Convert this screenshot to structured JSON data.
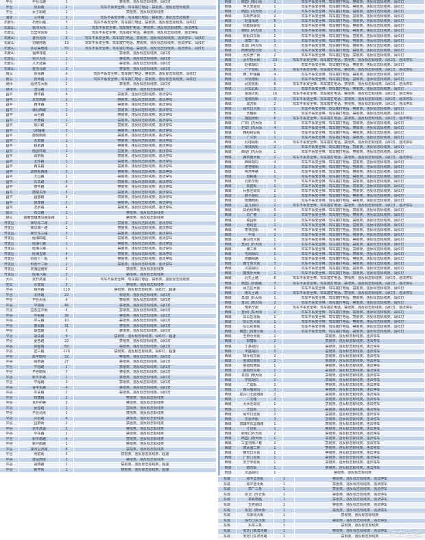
{
  "row_colors": {
    "light": "#edf1f8",
    "blue": "#c4d3e8"
  },
  "left_table": {
    "rows": [
      [
        "丰台",
        "丰台北路",
        "1",
        "禁限类、违反标志标线类、闯红灯"
      ],
      [
        "丰台",
        "京周路",
        "2",
        "驾车不系安全带、驾车拨打电话、禁限类、违反标志标线类"
      ],
      [
        "丰台",
        "太子峪路",
        "1",
        "禁限类、违反标志标线类"
      ],
      [
        "海淀",
        "三环路",
        "2",
        "驾车不系安全带、驾车拨打电话、禁限类、违反标志标线类"
      ],
      [
        "石景山",
        "石景山路",
        "3",
        "驾车不系安全带、驾车拨打电话、禁限类、违反标志标线类、闯红灯"
      ],
      [
        "石景山",
        "银河大街",
        "1",
        "驾车不系安全带、驾车拨打电话、禁限类、违反标志标线类、违法停车"
      ],
      [
        "石景山",
        "五里坨东街",
        "1",
        "驾车不系安全带、驾车拨打电话、禁限类、违反标志标线类、违法停车"
      ],
      [
        "石景山",
        "晋元北街",
        "8",
        "驾车不系安全带、驾车拨打电话、禁限类、违反标志标线类、违法停车、闯红灯"
      ],
      [
        "石景山",
        "刘娘府路",
        "13",
        "驾车不系安全带、驾车拨打电话、禁限类、违反标志标线类、违法停车、闯红灯"
      ],
      [
        "石景山",
        "永引渠南路",
        "55",
        "驾车不系安全带、驾车拨打电话、禁限类、违反标志标线类、违法停车、闯红灯"
      ],
      [
        "石景山",
        "福田寺路",
        "1",
        "禁限类、违反标志标线类、闯红灯"
      ],
      [
        "石景山",
        "实兴大街",
        "1",
        "禁限类、违反标志标线类、闯红灯"
      ],
      [
        "石景山",
        "八大处路",
        "2",
        "禁限类、违反标志标线类、闯红灯"
      ],
      [
        "石景山",
        "金顶北路",
        "3",
        "禁限类、违反标志标线类、闯红灯"
      ],
      [
        "房山",
        "京深路",
        "4",
        "驾车不系安全带、驾车拨打电话、禁限类、违反标志标线类、闯红灯"
      ],
      [
        "房山",
        "京周路",
        "2",
        "驾车不系安全带、驾车拨打电话、禁限类、违反标志标线类、闯红灯"
      ],
      [
        "通州",
        "运河东大街",
        "2",
        "禁限类、违反标志标线类、闯红灯"
      ],
      [
        "通州",
        "滨马路",
        "1",
        "禁限类、违反标志标线类"
      ],
      [
        "昌平",
        "南环路",
        "4",
        "禁限类、违反标志标线类、违法停车"
      ],
      [
        "昌平",
        "永安西路",
        "2",
        "禁限类、违反标志标线类、违法停车"
      ],
      [
        "昌平",
        "西环路",
        "3",
        "禁限类、违反标志标线类、违法停车"
      ],
      [
        "昌平",
        "城北西路",
        "1",
        "禁限类、违反标志标线类、违法停车"
      ],
      [
        "昌平",
        "百合路",
        "2",
        "禁限类、违反标志标线类、违法停车"
      ],
      [
        "昌平",
        "水南路",
        "1",
        "禁限类、违反标志标线类、违法停车"
      ],
      [
        "昌平",
        "振兴路",
        "2",
        "禁限类、违反标志标线类、违法停车"
      ],
      [
        "昌平",
        "G6辅路",
        "3",
        "禁限类、违反标志标线类、违法停车"
      ],
      [
        "昌平",
        "鼓楼南街",
        "2",
        "禁限类、违反标志标线类、违法停车"
      ],
      [
        "昌平",
        "永安路",
        "1",
        "禁限类、违反标志标线类、违法停车"
      ],
      [
        "昌平",
        "超前路",
        "1",
        "禁限类、违反标志标线类、违法停车"
      ],
      [
        "昌平",
        "南邵环路",
        "1",
        "禁限类、违反标志标线类、违法停车"
      ],
      [
        "昌平",
        "政府街",
        "1",
        "禁限类、违反标志标线类、违法停车"
      ],
      [
        "昌平",
        "北环路",
        "1",
        "禁限类、违反标志标线类、违法停车"
      ],
      [
        "昌平",
        "西关路",
        "1",
        "禁限类、违反标志标线类、违法停车"
      ],
      [
        "昌平",
        "政府街西路",
        "3",
        "禁限类、违反标志标线类、违法停车"
      ],
      [
        "昌平",
        "亢山路",
        "1",
        "禁限类、违反标志标线类、违法停车"
      ],
      [
        "昌平",
        "东关路",
        "4",
        "禁限类、违反标志标线类、违法停车"
      ],
      [
        "昌平",
        "燕平路",
        "4",
        "禁限类、违反标志标线类、违法停车"
      ],
      [
        "昌平",
        "鼓楼东街",
        "3",
        "禁限类、违反标志标线类、违法停车"
      ],
      [
        "昌平",
        "昌盛路",
        "3",
        "禁限类、违反标志标线类、违法停车"
      ],
      [
        "昌平",
        "富康路",
        "2",
        "禁限类、违反标志标线类、违法停车"
      ],
      [
        "昌平",
        "龙水路",
        "4",
        "禁限类、违反标志标线类、违法停车"
      ],
      [
        "顺义",
        "石马路",
        "1",
        "禁限类、违反标志标线类"
      ],
      [
        "顺义",
        "高丽营镇西马圈车路",
        "1",
        "禁限类、违反标志标线类"
      ],
      [
        "开发区",
        "荣华东二路",
        "2",
        "禁限类、违反标志标线类、违法停车"
      ],
      [
        "开发区",
        "荣华西一路",
        "1",
        "禁限类、违反标志标线类、违法停车"
      ],
      [
        "开发区",
        "荣华东三路",
        "3",
        "禁限类、违反标志标线类、违法停车"
      ],
      [
        "开发区",
        "经海四路",
        "2",
        "禁限类、违反标志标线类、违法停车"
      ],
      [
        "开发区",
        "经海七路",
        "1",
        "禁限类、违反标志标线类、违法停车"
      ],
      [
        "开发区",
        "经海三路",
        "1",
        "禁限类、违反标志标线类、违法停车"
      ],
      [
        "开发区",
        "经海五路",
        "4",
        "禁限类、违反标志标线类、违法停车"
      ],
      [
        "开发区",
        "科创十一街",
        "4",
        "禁限类、违反标志标线类、违法停车"
      ],
      [
        "开发区",
        "科创十二街",
        "1",
        "禁限类、违反标志标线类、违法停车"
      ],
      [
        "开发区",
        "定海园南街",
        "2",
        "禁限类、违反标志标线类"
      ],
      [
        "开发区",
        "经海八路",
        "3",
        "禁限类、违反标志标线类"
      ],
      [
        "大兴",
        "京开高速",
        "2",
        "驾车不系安全带、驾车拨打电话、禁限类、违反标志标线类"
      ],
      [
        "密云",
        "水安街",
        "3",
        "禁限类、违反标志标线类"
      ],
      [
        "平谷",
        "顺平路",
        "110",
        "禁限类、违反标志标线类、闯红灯、超速"
      ],
      [
        "平谷",
        "北环路",
        "22",
        "禁限类、违反标志标线类、闯红灯"
      ],
      [
        "平谷",
        "平谷大街",
        "4",
        "禁限类、违反标志标线类、闯红灯"
      ],
      [
        "平谷",
        "平瑞街",
        "46",
        "禁限类、违反标志标线类、闯红灯"
      ],
      [
        "平谷",
        "岳各庄中街",
        "4",
        "禁限类、违反标志标线类、闯红灯"
      ],
      [
        "平谷",
        "平蓟路",
        "36",
        "禁限类、违反标志标线类、闯红灯"
      ],
      [
        "平谷",
        "平三路",
        "10",
        "禁限类、违反标志标线类、闯红灯"
      ],
      [
        "平谷",
        "泰润路",
        "31",
        "禁限类、违反标志标线类、闯红灯"
      ],
      [
        "平谷",
        "胡营路",
        "3",
        "禁限类、违反标志标线类、闯红灯"
      ],
      [
        "平谷",
        "胡关路",
        "9",
        "禁限类、违反标志标线类、闯红灯、超速"
      ],
      [
        "平谷",
        "夏各路",
        "22",
        "禁限类、违反标志标线类、闯红灯"
      ],
      [
        "平谷",
        "四金路",
        "69",
        "禁限类、违反标志标线类、闯红灯"
      ],
      [
        "平谷",
        "密三路",
        "110",
        "禁限类、违反标志标线类、闯红灯、超速"
      ],
      [
        "平谷",
        "顺平南线",
        "32",
        "禁限类、违反标志标线类、闯红灯"
      ],
      [
        "平谷",
        "峪杏路",
        "27",
        "禁限类、违反标志标线类、闯红灯"
      ],
      [
        "平谷",
        "平翔路",
        "2",
        "禁限类、违反标志标线类、闯红灯"
      ],
      [
        "平谷",
        "平谷南街",
        "7",
        "禁限类、违反标志标线类、闯红灯"
      ],
      [
        "平谷",
        "新平东路",
        "2",
        "禁限类、违反标志标线类、闯红灯"
      ],
      [
        "平谷",
        "平程路",
        "3",
        "禁限类、违反标志标线类、闯红灯"
      ],
      [
        "平谷",
        "谷丰东路",
        "4",
        "禁限类、违反标志标线类、闯红灯"
      ],
      [
        "平谷",
        "平关路",
        "2",
        "禁限类、违反标志标线类、闯红灯"
      ],
      [
        "平谷",
        "林荫路",
        "2",
        "禁限类、违反标志标线类"
      ],
      [
        "平谷",
        "瓦井中路",
        "2",
        "禁限类、违反标志标线类"
      ],
      [
        "平谷",
        "民强路",
        "1",
        "禁限类、违反标志标线类"
      ],
      [
        "平谷",
        "平谷北街",
        "1",
        "禁限类、违反标志标线类"
      ],
      [
        "平谷",
        "兴谷路",
        "4",
        "禁限类、违反标志标线类"
      ],
      [
        "平谷",
        "园田街",
        "2",
        "禁限类、违反标志标线类"
      ],
      [
        "平谷",
        "京平高速",
        "2",
        "禁限类、违反标志标线类"
      ],
      [
        "平谷",
        "平东路",
        "2",
        "禁限类、违反标志标线类"
      ],
      [
        "平谷",
        "新平南路",
        "4",
        "禁限类、违反标志标线类"
      ],
      [
        "平谷",
        "新坪南路",
        "1",
        "禁限类、违反标志标线类"
      ],
      [
        "平谷",
        "洳河沿河路",
        "8",
        "禁限类、违反标志标线类"
      ],
      [
        "平谷",
        "明前街",
        "5",
        "禁限类、违反标志标线类、超速"
      ],
      [
        "平谷",
        "建设西街",
        "3",
        "禁限类、违反标志标线类"
      ],
      [
        "平谷",
        "胡博路",
        "2",
        "禁限类、违反标志标线类、超速"
      ],
      [
        "平谷",
        "新开街",
        "1",
        "禁限类、违反标志标线类、超速"
      ]
    ]
  },
  "right_table_west": {
    "rows": [
      [
        "西城",
        "西直门南小街",
        "2",
        "驾车不系安全带、驾车拨打电话、禁限类、违反标志标线类、闯红灯"
      ],
      [
        "西城",
        "中大安胡同",
        "1",
        "驾车不系安全带、驾车拨打电话、禁限类、违反标志标线类、闯红灯"
      ],
      [
        "西城",
        "西直门内大街",
        "2",
        "驾车不系安全带、驾车拨打电话、禁限类、违反标志标线类、闯红灯"
      ],
      [
        "西城",
        "东新开胡同",
        "2",
        "驾车不系安全带、驾车拨打电话、禁限类、违反标志标线类、闯红灯"
      ],
      [
        "西城",
        "赵登禹路",
        "5",
        "驾车不系安全带、驾车拨打电话、禁限类、违反标志标线类、闯红灯"
      ],
      [
        "西城",
        "东教场胡同",
        "1",
        "驾车不系安全带、驾车拨打电话、禁限类、违反标志标线类、闯红灯"
      ],
      [
        "西城",
        "德胜门内大街",
        "5",
        "驾车不系安全带、驾车拨打电话、禁限类、违反标志标线类、闯红灯"
      ],
      [
        "西城",
        "新街口东街",
        "1",
        "驾车不系安全带、驾车拨打电话、禁限类、违反标志标线类、闯红灯"
      ],
      [
        "西城",
        "南草厂街",
        "1",
        "驾车不系安全带、驾车拨打电话、禁限类、违反标志标线类、闯红灯"
      ],
      [
        "西城",
        "阜成门内大街",
        "3",
        "驾车不系安全带、驾车拨打电话、禁限类、违反标志标线类、闯红灯"
      ],
      [
        "西城",
        "西黄城根北街",
        "1",
        "驾车不系安全带、驾车拨打电话、禁限类、违反标志标线类、闯红灯"
      ],
      [
        "西城",
        "大红罗厂街",
        "2",
        "驾车不系安全带、驾车拨打电话、禁限类、违反标志标线类、闯红灯"
      ],
      [
        "西城",
        "太平桥大街",
        "23",
        "驾车不系安全带、驾车拨打电话、禁限类、违反标志标线类、闯红灯、违法停车"
      ],
      [
        "西城",
        "赵孝胡同",
        "1",
        "驾车不系安全带、驾车拨打电话、禁限类、违反标志标线类、闯红灯"
      ],
      [
        "西城",
        "广宁伯街",
        "6",
        "驾车不系安全带、驾车拨打电话、禁限类、违反标志标线类、闯红灯、违法停车"
      ],
      [
        "西城",
        "西二环辅路",
        "4",
        "驾车不系安全带、驾车拨打电话、禁限类、违反标志标线类、闯红灯"
      ],
      [
        "西城",
        "月坛南街",
        "1",
        "驾车不系安全带、驾车拨打电话、禁限类、违反标志标线类、闯红灯"
      ],
      [
        "西城",
        "武定侯街",
        "8",
        "驾车不系安全带、驾车拨打电话、禁限类、违反标志标线类、闯红灯、违法停车"
      ],
      [
        "西城",
        "月坛北街",
        "1",
        "驾车不系安全带、驾车拨打电话、禁限类、违反标志标线类、闯红灯"
      ],
      [
        "西城",
        "金融大街",
        "16",
        "驾车不系安全带、驾车拨打电话、禁限类、违反标志标线类、闯红灯、违法停车"
      ],
      [
        "西城",
        "金城坊街",
        "3",
        "驾车不系安全带、驾车拨打电话、禁限类、违反标志标线类、闯红灯、违法停车"
      ],
      [
        "西城",
        "成方街",
        "2",
        "驾车不系安全带、驾车拨打电话、禁限类、违反标志标线类、闯红灯、违法停车"
      ],
      [
        "西城",
        "闹市口大街",
        "1",
        "驾车不系安全带、驾车拨打电话、禁限类、违反标志标线类、闯红灯"
      ],
      [
        "西城",
        "长椿街",
        "5",
        "驾车不系安全带、驾车拨打电话、禁限类、违反标志标线类、闯红灯"
      ],
      [
        "西城",
        "槐柏树街",
        "6",
        "驾车不系安全带、驾车拨打电话、禁限类、违反标志标线类、闯红灯、违法停车"
      ],
      [
        "西城",
        "广安门内大街",
        "3",
        "驾车不系安全带、驾车拨打电话、禁限类、违反标志标线类、闯红灯"
      ],
      [
        "西城",
        "右安门内大街",
        "4",
        "驾车不系安全带、驾车拨打电话、禁限类、违反标志标线类、闯红灯"
      ],
      [
        "西城",
        "槐柏树后街",
        "1",
        "驾车不系安全带、驾车拨打电话、禁限类、违反标志标线类、闯红灯"
      ],
      [
        "西城",
        "广义街",
        "1",
        "驾车不系安全带、驾车拨打电话、禁限类、违反标志标线类、闯红灯"
      ],
      [
        "西城",
        "北线阁街",
        "4",
        "驾车不系安全带、驾车拨打电话、禁限类、违反标志标线类、闯红灯、违法停车"
      ],
      [
        "西城",
        "南线阁街",
        "2",
        "驾车不系安全带、驾车拨打电话、禁限类、违反标志标线类、闯红灯"
      ],
      [
        "西城",
        "西便门内大街",
        "1",
        "驾车不系安全带、驾车拨打电话、禁限类、违反标志标线类、闯红灯"
      ],
      [
        "西城",
        "西四南大街",
        "2",
        "驾车不系安全带、驾车拨打电话、禁限类、违反标志标线类、闯红灯、违法停车"
      ],
      [
        "西城",
        "西砖胡同",
        "4",
        "驾车不系安全带、驾车拨打电话、禁限类、违反标志标线类、闯红灯"
      ],
      [
        "西城",
        "老墙根街",
        "1",
        "驾车不系安全带、驾车拨打电话、禁限类、违反标志标线类、闯红灯"
      ],
      [
        "西城",
        "陶然亭路",
        "1",
        "驾车不系安全带、驾车拨打电话、禁限类、违反标志标线类、闯红灯"
      ],
      [
        "西城",
        "自新路",
        "1",
        "驾车不系安全带、驾车拨打电话、禁限类、违反标志标线类、闯红灯"
      ],
      [
        "西城",
        "北新华街",
        "3",
        "驾车不系安全带、驾车拨打电话、禁限类、违反标志标线类、闯红灯"
      ],
      [
        "西城",
        "新壁街",
        "1",
        "驾车不系安全带、驾车拨打电话、禁限类、违反标志标线类、闯红灯"
      ],
      [
        "西城",
        "兵部洼胡同",
        "1",
        "驾车不系安全带、驾车拨打电话、禁限类、违反标志标线类、闯红灯"
      ],
      [
        "西城",
        "教子胡同",
        "1",
        "驾车不系安全带、驾车拨打电话、禁限类、违反标志标线类、闯红灯"
      ],
      [
        "西城",
        "南横西街",
        "2",
        "驾车不系安全带、驾车拨打电话、禁限类、违反标志标线类、闯红灯"
      ],
      [
        "西城",
        "盆儿胡同",
        "2",
        "驾车不系安全带、驾车拨打电话、禁限类、违反标志标线类、闯红灯、违法停车"
      ],
      [
        "西城",
        "白纸坊西街",
        "5",
        "驾车不系安全带、驾车拨打电话、禁限类、违反标志标线类、闯红灯"
      ],
      [
        "西城",
        "白广路",
        "2",
        "驾车不系安全带、驾车拨打电话、禁限类、违反标志标线类、闯红灯"
      ],
      [
        "西城",
        "菜园街",
        "1",
        "驾车不系安全带、驾车拨打电话、禁限类、违反标志标线类、闯红灯"
      ],
      [
        "西城",
        "南线里",
        "1",
        "驾车不系安全带、驾车拨打电话、禁限类、违反标志标线类、闯红灯"
      ],
      [
        "西城",
        "枣林前街",
        "4",
        "驾车不系安全带、驾车拨打电话、禁限类、违反标志标线类、闯红灯"
      ],
      [
        "西城",
        "牛街",
        "1",
        "驾车不系安全带、驾车拨打电话、禁限类、违反标志标线类、闯红灯"
      ],
      [
        "西城",
        "骡马市大街",
        "1",
        "驾车不系安全带、驾车拨打电话、禁限类、违反标志标线类、闯红灯"
      ],
      [
        "西城",
        "宣武门外大街",
        "1",
        "驾车不系安全带、驾车拨打电话、禁限类、违反标志标线类、闯红灯"
      ],
      [
        "西城",
        "横二条",
        "4",
        "驾车不系安全带、驾车拨打电话、禁限类、违反标志标线类、闯红灯"
      ],
      [
        "西城",
        "屯绢胡同",
        "1",
        "驾车不系安全带、驾车拨打电话、禁限类、违反标志标线类、闯红灯"
      ],
      [
        "西城",
        "佟麟阁路",
        "1",
        "驾车不系安全带、驾车拨打电话、禁限类、违反标志标线类、闯红灯"
      ],
      [
        "西城",
        "西什库大街",
        "3",
        "驾车不系安全带、驾车拨打电话、禁限类、违反标志标线类、闯红灯"
      ],
      [
        "西城",
        "灵境胡同",
        "1",
        "驾车不系安全带、驾车拨打电话、禁限类、违反标志标线类、闯红灯"
      ],
      [
        "西城",
        "鼓楼外大街",
        "1",
        "驾车不系安全带、驾车拨打电话、禁限类、违反标志标线类、闯红灯"
      ],
      [
        "西城",
        "北礼士路",
        "6",
        "驾车不系安全带、驾车拨打电话、禁限类、违反标志标线类、闯红灯、违法停车"
      ],
      [
        "西城",
        "西直门外南路",
        "3",
        "驾车不系安全带、驾车拨打电话、禁限类、违反标志标线类、闯红灯、违法停车"
      ],
      [
        "西城",
        "百万庄大街",
        "1",
        "驾车不系安全带、驾车拨打电话、禁限类、违反标志标线类、闯红灯"
      ],
      [
        "西城",
        "南礼士路",
        "2",
        "驾车不系安全带、驾车拨打电话、禁限类、违反标志标线类、闯红灯、违法停车"
      ],
      [
        "西城",
        "阜成门外大街",
        "1",
        "驾车不系安全带、驾车拨打电话、禁限类、违反标志标线类、闯红灯"
      ],
      [
        "西城",
        "宣武门西大街",
        "2",
        "驾车不系安全带、驾车拨打电话、禁限类、违反标志标线类、闯红灯"
      ],
      [
        "西城",
        "南新华街",
        "2",
        "驾车不系安全带、驾车拨打电话、禁限类、违反标志标线类、闯红灯、违法停车"
      ],
      [
        "西城",
        "宣武门东大街",
        "2",
        "驾车不系安全带、驾车拨打电话、禁限类、违反标志标线类、闯红灯"
      ],
      [
        "西城",
        "车公庄北街",
        "1",
        "驾车不系安全带、驾车拨打电话、禁限类、违反标志标线类、闯红灯"
      ],
      [
        "西城",
        "车公庄大街",
        "1",
        "驾车不系安全带、驾车拨打电话、禁限类、违反标志标线类、闯红灯"
      ],
      [
        "西城",
        "车公庄南街",
        "1",
        "驾车不系安全带、驾车拨打电话、禁限类、违反标志标线类、闯红灯"
      ],
      [
        "西城",
        "西直门内南小街",
        "1",
        "驾车不系安全带、驾车拨打电话、禁限类、违反标志标线类、闯红灯"
      ],
      [
        "西城",
        "王府仓北街",
        "2",
        "禁限类、违反标志标线类、违法停车"
      ],
      [
        "西城",
        "柳荫街",
        "2",
        "禁限类、违反标志标线类、违法停车"
      ],
      [
        "西城",
        "丁章胡同",
        "1",
        "禁限类、违反标志标线类、违法停车"
      ],
      [
        "西城",
        "丰盛胡同",
        "3",
        "禁限类、违反标志标线类、违法停车"
      ],
      [
        "西城",
        "锦什坊东街",
        "2",
        "禁限类、违反标志标线类、违法停车"
      ],
      [
        "西城",
        "金城坊南街",
        "2",
        "禁限类、违反标志标线类、违法停车"
      ],
      [
        "西城",
        "金城坊西街",
        "1",
        "禁限类、违反标志标线类、违法停车"
      ],
      [
        "西城",
        "金城坊东街",
        "1",
        "禁限类、违反标志标线类、违法停车"
      ],
      [
        "西城",
        "阜成门南大街",
        "2",
        "禁限类、违反标志标线类、违法停车"
      ],
      [
        "西城",
        "学院胡同",
        "2",
        "禁限类、违反标志标线类、违法停车"
      ],
      [
        "西城",
        "广成街",
        "2",
        "禁限类、违反标志标线类、违法停车"
      ],
      [
        "西城",
        "西兴盛胡同",
        "3",
        "禁限类、违反标志标线类、违法停车"
      ],
      [
        "西城",
        "复兴门北顺城街",
        "2",
        "禁限类、违反标志标线类、违法停车"
      ],
      [
        "西城",
        "二龙路",
        "3",
        "禁限类、违反标志标线类、违法停车"
      ],
      [
        "西城",
        "大木仓胡同",
        "1",
        "禁限类、违反标志标线类、违法停车"
      ],
      [
        "西城",
        "华远街",
        "1",
        "禁限类、违反标志标线类、违法停车"
      ],
      [
        "西城",
        "闹市口北街",
        "2",
        "禁限类、违反标志标线类、违法停车"
      ],
      [
        "西城",
        "华嘉寺街",
        "3",
        "禁限类、违反标志标线类、违法停车"
      ],
      [
        "西城",
        "双旗杆东里南路",
        "1",
        "禁限类、违反标志标线类、违法停车"
      ],
      [
        "西城",
        "什坊街",
        "1",
        "禁限类、违反标志标线类、违法停车"
      ],
      [
        "西城",
        "新街口外大街",
        "2",
        "禁限类、违反标志标线类、违法停车"
      ],
      [
        "西城",
        "西直门南大街",
        "1",
        "禁限类、违反标志标线类、违法停车"
      ],
      [
        "西城",
        "三里河南八巷",
        "1",
        "禁限类、违反标志标线类、违法停车"
      ],
      [
        "西城",
        "真武庙二条",
        "1",
        "禁限类、违反标志标线类、违法停车"
      ],
      [
        "西城",
        "菜市口大街",
        "1",
        "禁限类、违反标志标线类、违法停车"
      ],
      [
        "西城",
        "广安门北街",
        "1",
        "禁限类、违反标志标线类、违法停车"
      ],
      [
        "西城",
        "天宁寺前街",
        "1",
        "禁限类、违反标志标线类、违法停车"
      ],
      [
        "西城",
        "耀市街",
        "1",
        "禁限类、违反标志标线类、违法停车"
      ],
      [
        "西城",
        "文昌胡同",
        "1",
        "禁限类、违反标志标线类"
      ]
    ]
  },
  "right_table_east": {
    "rows": [
      [
        "东城",
        "和平里东街",
        "1",
        "禁限类、违反标志标线类、违法停车"
      ],
      [
        "东城",
        "和平里北街",
        "1",
        "禁限类、违反标志标线类、违法停车"
      ],
      [
        "东城",
        "草厂三条",
        "1",
        "禁限类、违反标志标线类、违法停车"
      ],
      [
        "东城",
        "崇文门外大街",
        "1",
        "禁限类、违反标志标线类、违法停车"
      ],
      [
        "东城",
        "革新南路",
        "1",
        "禁限类、违反标志标线类、违法停车"
      ],
      [
        "东城",
        "五老胡同",
        "1",
        "禁限类、违反标志标线类、违法停车"
      ],
      [
        "东城",
        "永定门西大街",
        "1",
        "禁限类、违反标志标线类、违法停车"
      ],
      [
        "东城",
        "东单北大街",
        "1",
        "禁限类、违反标志标线类"
      ],
      [
        "东城",
        "珠市口东大街",
        "1",
        "禁限类、违反标志标线类、违法停车"
      ],
      [
        "东城",
        "东单三条",
        "1",
        "禁限类、违反标志标线类"
      ],
      [
        "东城",
        "安定门西滨河路",
        "1",
        "禁限类、违反标志标线类、违法停车"
      ],
      [
        "东城",
        "安定门东滨河路",
        "1",
        "禁限类、违反标志标线类"
      ]
    ]
  },
  "watermark": {
    "text": "汽车之家"
  }
}
